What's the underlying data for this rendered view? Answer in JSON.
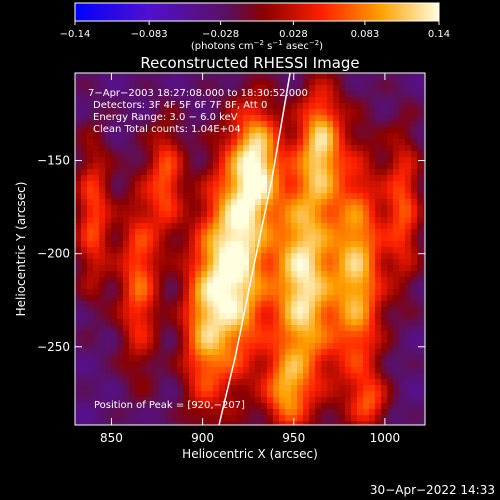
{
  "chart_data": {
    "type": "heatmap",
    "title": "Reconstructed RHESSI Image",
    "xlabel": "Heliocentric X (arcsec)",
    "ylabel": "Heliocentric Y (arcsec)",
    "xlim": [
      830,
      1022
    ],
    "ylim": [
      -292,
      -103
    ],
    "x_ticks": [
      850,
      900,
      950,
      1000
    ],
    "x_tick_labels": [
      "850",
      "900",
      "950",
      "1000"
    ],
    "y_ticks": [
      -150,
      -200,
      -250
    ],
    "y_tick_labels": [
      "−150",
      "−200",
      "−250"
    ],
    "colorbar": {
      "range": [
        -0.14,
        0.14
      ],
      "ticks": [
        -0.14,
        -0.083,
        -0.028,
        0.028,
        0.083,
        0.14
      ],
      "tick_labels": [
        "−0.14",
        "−0.083",
        "−0.028",
        "0.028",
        "0.083",
        "0.14"
      ],
      "unit_parts": [
        "(photons cm",
        "−2",
        " s",
        "−1",
        " asec",
        "−2",
        ")"
      ]
    },
    "annotations": [
      "7−Apr−2003 18:27:08.000 to 18:30:52.000",
      "Detectors: 3F 4F 5F 6F 7F 8F, Att 0",
      "Energy Range: 3.0 − 6.0 keV",
      "Clean     Total counts: 1.04E+04"
    ],
    "peak_label": "Position of Peak = [920,−207]",
    "peak": [
      920,
      -207
    ],
    "limb_curve": [
      [
        909,
        -292
      ],
      [
        918,
        -255
      ],
      [
        928,
        -207
      ],
      [
        938,
        -160
      ],
      [
        948,
        -103
      ]
    ],
    "sources": [
      {
        "x": 840,
        "y": -180,
        "sx": 7,
        "sy": 30,
        "a": 0.55
      },
      {
        "x": 865,
        "y": -215,
        "sx": 8,
        "sy": 35,
        "a": 0.6
      },
      {
        "x": 880,
        "y": -160,
        "sx": 7,
        "sy": 22,
        "a": 0.55
      },
      {
        "x": 900,
        "y": -240,
        "sx": 9,
        "sy": 35,
        "a": 0.6
      },
      {
        "x": 918,
        "y": -205,
        "sx": 12,
        "sy": 42,
        "a": 1.0
      },
      {
        "x": 930,
        "y": -150,
        "sx": 9,
        "sy": 22,
        "a": 0.75
      },
      {
        "x": 955,
        "y": -215,
        "sx": 12,
        "sy": 45,
        "a": 0.95
      },
      {
        "x": 965,
        "y": -140,
        "sx": 8,
        "sy": 22,
        "a": 0.7
      },
      {
        "x": 985,
        "y": -210,
        "sx": 10,
        "sy": 45,
        "a": 0.8
      },
      {
        "x": 1010,
        "y": -175,
        "sx": 7,
        "sy": 30,
        "a": 0.55
      },
      {
        "x": 945,
        "y": -275,
        "sx": 8,
        "sy": 14,
        "a": 0.5
      },
      {
        "x": 992,
        "y": -280,
        "sx": 7,
        "sy": 10,
        "a": 0.4
      }
    ]
  },
  "footer_timestamp": "30−Apr−2022 14:33"
}
